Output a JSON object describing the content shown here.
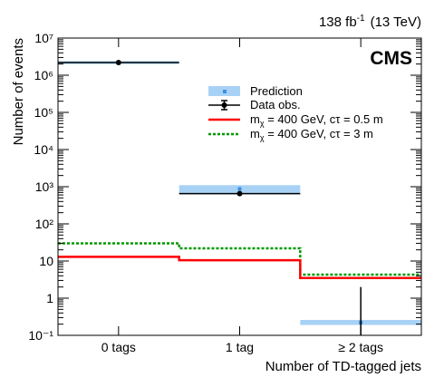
{
  "header": {
    "lumi_value": "138 fb",
    "lumi_exponent": "-1",
    "energy": "(13 TeV)",
    "experiment": "CMS"
  },
  "axes": {
    "xlabel": "Number of TD-tagged jets",
    "ylabel": "Number of events"
  },
  "legend": {
    "prediction": "Prediction",
    "data": "Data obs.",
    "signal1_prefix": "m",
    "signal1_sub": "χ",
    "signal1_rest": " = 400 GeV, cτ = 0.5 m",
    "signal2_prefix": "m",
    "signal2_sub": "χ",
    "signal2_rest": " = 400 GeV, cτ = 3 m"
  },
  "chart_data": {
    "type": "bar",
    "title": "",
    "xlabel": "Number of TD-tagged jets",
    "ylabel": "Number of events",
    "categories": [
      "0 tags",
      "1 tag",
      "≥ 2 tags"
    ],
    "y_scale": "log",
    "ylim": [
      0.1,
      10000000
    ],
    "y_tick_labels": [
      "10⁻¹",
      "1",
      "10",
      "10²",
      "10³",
      "10⁴",
      "10⁵",
      "10⁶",
      "10⁷"
    ],
    "grid": false,
    "legend_position": "top-right",
    "colors": {
      "prediction_band": "#a8d2f5",
      "prediction_marker": "#3b8fe0",
      "data": "#000000",
      "signal_0p5m": "#ff0000",
      "signal_3m": "#009900"
    },
    "series": [
      {
        "name": "Prediction",
        "kind": "band",
        "values": [
          2200000,
          870,
          0.22
        ],
        "band_low": [
          2000000,
          620,
          0.19
        ],
        "band_high": [
          2400000,
          1100,
          0.26
        ]
      },
      {
        "name": "Data obs.",
        "kind": "points",
        "values": [
          2200000,
          650,
          0.1
        ],
        "err_low": [
          0,
          50,
          0
        ],
        "err_high": [
          0,
          50,
          1.9
        ]
      },
      {
        "name": "m_χ = 400 GeV, cτ = 0.5 m",
        "kind": "step",
        "values": [
          13,
          10.5,
          3.5
        ]
      },
      {
        "name": "m_χ = 400 GeV, cτ = 3 m",
        "kind": "step-dashed",
        "values": [
          30,
          22,
          4.3
        ]
      }
    ]
  }
}
